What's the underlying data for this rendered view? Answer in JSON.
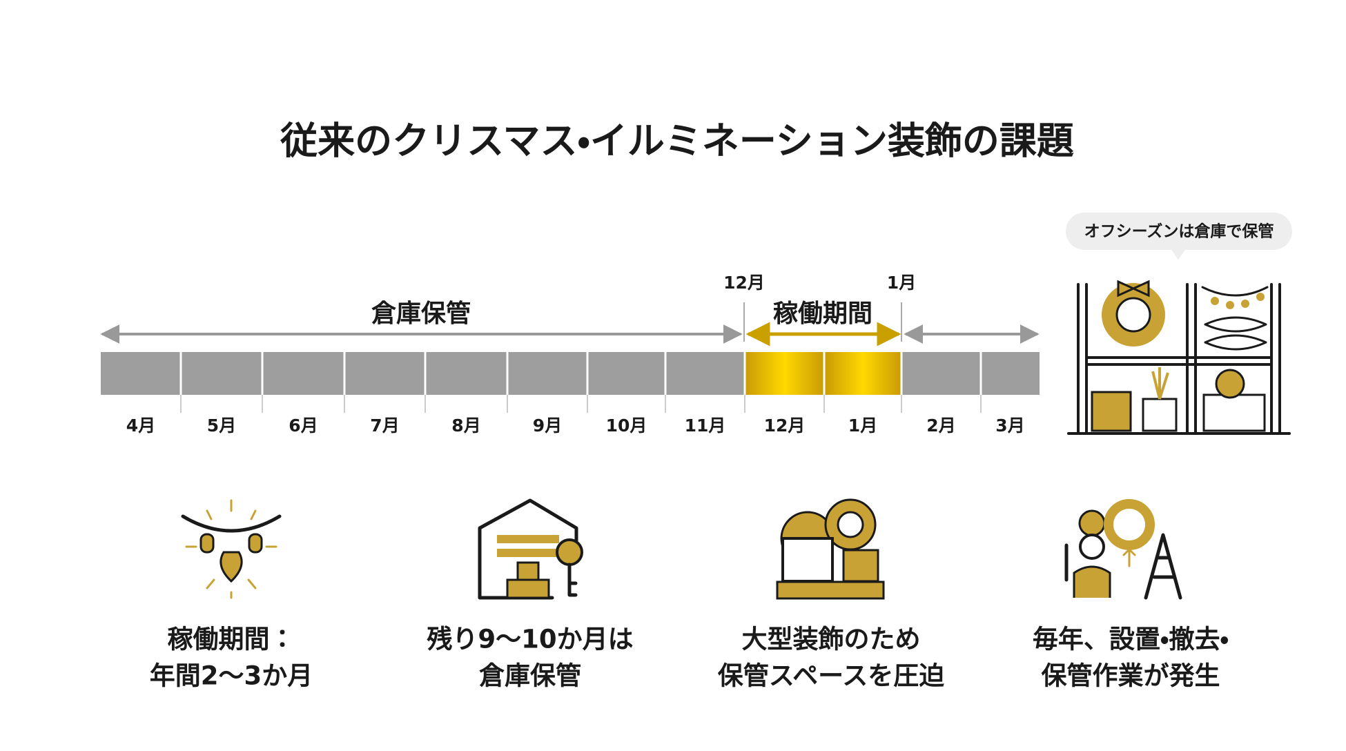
{
  "title": "従来のクリスマス・イルミネーション装飾の課題",
  "timeline": {
    "storage_label": "倉庫保管",
    "active_label": "稼働期間",
    "active_start": "12月",
    "active_end": "1月",
    "months": [
      "4月",
      "5月",
      "6月",
      "7月",
      "8月",
      "9月",
      "10月",
      "11月",
      "12月",
      "1月",
      "2月",
      "3月"
    ]
  },
  "warehouse_bubble": "オフシーズンは倉庫で保管",
  "points": [
    {
      "line1": "稼働期間：",
      "line2": "年間2〜3か月"
    },
    {
      "line1": "残り9〜10か月は",
      "line2": "倉庫保管"
    },
    {
      "line1": "大型装飾のため",
      "line2": "保管スペースを圧迫"
    },
    {
      "line1": "毎年、設置・撤去・",
      "line2": "保管作業が発生"
    }
  ]
}
